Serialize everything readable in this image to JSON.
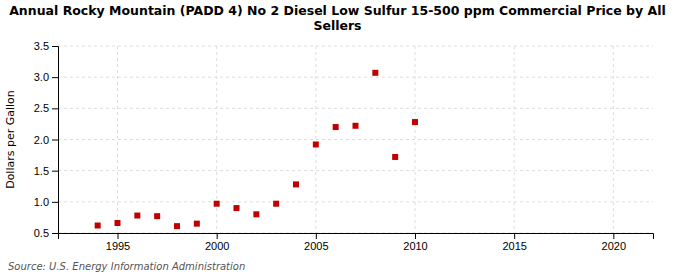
{
  "chart_data": {
    "type": "scatter",
    "title": "Annual Rocky Mountain (PADD 4) No 2 Diesel Low Sulfur 15-500 ppm Commercial Price by All\nSellers",
    "ylabel": "Dollars per Gallon",
    "source": "Source: U.S. Energy Information Administration",
    "x": [
      1994,
      1995,
      1996,
      1997,
      1998,
      1999,
      2000,
      2001,
      2002,
      2003,
      2004,
      2005,
      2006,
      2007,
      2008,
      2009,
      2010
    ],
    "values": [
      0.62,
      0.66,
      0.78,
      0.77,
      0.61,
      0.65,
      0.97,
      0.9,
      0.8,
      0.97,
      1.28,
      1.92,
      2.2,
      2.22,
      3.07,
      1.72,
      2.28
    ],
    "color": "#c00000",
    "marker": "square",
    "xlim": [
      1992,
      2022
    ],
    "ylim": [
      0.5,
      3.5
    ],
    "xticks": [
      1995,
      2000,
      2005,
      2010,
      2015,
      2020
    ],
    "yticks": [
      0.5,
      {
        "value": 1.0,
        "label": "1.0"
      },
      1.5,
      {
        "value": 2.0,
        "label": "2.0"
      },
      2.5,
      {
        "value": 3.0,
        "label": "3.0"
      },
      3.5
    ],
    "grid": true
  }
}
